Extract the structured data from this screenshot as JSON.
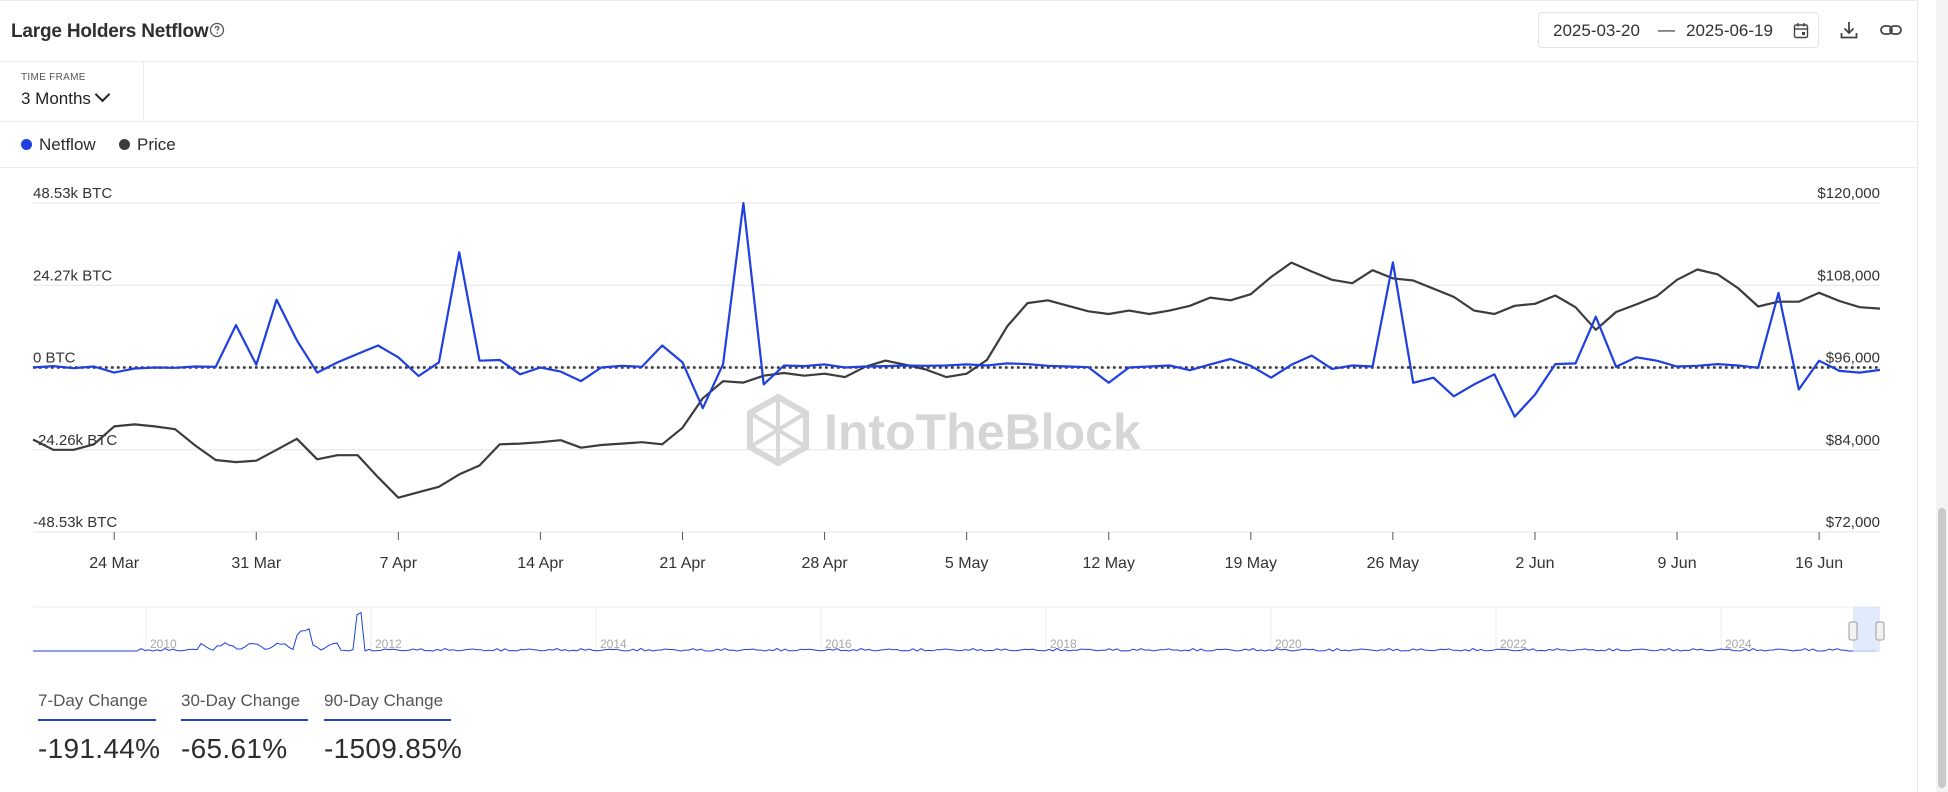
{
  "header": {
    "title": "Large Holders Netflow",
    "date_from": "2025-03-20",
    "date_separator": "—",
    "date_to": "2025-06-19"
  },
  "timeframe": {
    "label": "TIME FRAME",
    "value": "3 Months"
  },
  "legend": [
    {
      "label": "Netflow",
      "color": "#1f3fe0"
    },
    {
      "label": "Price",
      "color": "#3c3c3c"
    }
  ],
  "watermark": "IntoTheBlock",
  "stats": [
    {
      "label": "7-Day Change",
      "value": "-191.44%"
    },
    {
      "label": "30-Day Change",
      "value": "-65.61%"
    },
    {
      "label": "90-Day Change",
      "value": "-1509.85%"
    }
  ],
  "chart_data": {
    "type": "line",
    "title": "Large Holders Netflow",
    "left_axis": {
      "ticks": [
        "48.53k BTC",
        "24.27k BTC",
        "0 BTC",
        "-24.26k BTC",
        "-48.53k BTC"
      ],
      "range": [
        -48530,
        48530
      ],
      "unit": "BTC"
    },
    "right_axis": {
      "ticks": [
        "$120,000",
        "$108,000",
        "$96,000",
        "$84,000",
        "$72,000"
      ],
      "range": [
        72000,
        120000
      ],
      "unit": "USD"
    },
    "x_ticks": [
      "24 Mar",
      "31 Mar",
      "7 Apr",
      "14 Apr",
      "21 Apr",
      "28 Apr",
      "5 May",
      "12 May",
      "19 May",
      "26 May",
      "2 Jun",
      "9 Jun",
      "16 Jun"
    ],
    "x_range": [
      "2025-03-20",
      "2025-06-19"
    ],
    "grid": true,
    "zero_line": "dotted",
    "legend_position": "top-left",
    "series": [
      {
        "name": "Netflow",
        "axis": "left",
        "color": "#1f3fe0",
        "x": [
          "2025-03-20",
          "2025-03-21",
          "2025-03-22",
          "2025-03-23",
          "2025-03-24",
          "2025-03-25",
          "2025-03-26",
          "2025-03-27",
          "2025-03-28",
          "2025-03-29",
          "2025-03-30",
          "2025-03-31",
          "2025-04-01",
          "2025-04-02",
          "2025-04-03",
          "2025-04-04",
          "2025-04-05",
          "2025-04-06",
          "2025-04-07",
          "2025-04-08",
          "2025-04-09",
          "2025-04-10",
          "2025-04-11",
          "2025-04-12",
          "2025-04-13",
          "2025-04-14",
          "2025-04-15",
          "2025-04-16",
          "2025-04-17",
          "2025-04-18",
          "2025-04-19",
          "2025-04-20",
          "2025-04-21",
          "2025-04-22",
          "2025-04-23",
          "2025-04-24",
          "2025-04-25",
          "2025-04-26",
          "2025-04-27",
          "2025-04-28",
          "2025-04-29",
          "2025-04-30",
          "2025-05-01",
          "2025-05-02",
          "2025-05-03",
          "2025-05-04",
          "2025-05-05",
          "2025-05-06",
          "2025-05-07",
          "2025-05-08",
          "2025-05-09",
          "2025-05-10",
          "2025-05-11",
          "2025-05-12",
          "2025-05-13",
          "2025-05-14",
          "2025-05-15",
          "2025-05-16",
          "2025-05-17",
          "2025-05-18",
          "2025-05-19",
          "2025-05-20",
          "2025-05-21",
          "2025-05-22",
          "2025-05-23",
          "2025-05-24",
          "2025-05-25",
          "2025-05-26",
          "2025-05-27",
          "2025-05-28",
          "2025-05-29",
          "2025-05-30",
          "2025-05-31",
          "2025-06-01",
          "2025-06-02",
          "2025-06-03",
          "2025-06-04",
          "2025-06-05",
          "2025-06-06",
          "2025-06-07",
          "2025-06-08",
          "2025-06-09",
          "2025-06-10",
          "2025-06-11",
          "2025-06-12",
          "2025-06-13",
          "2025-06-14",
          "2025-06-15",
          "2025-06-16",
          "2025-06-17",
          "2025-06-18",
          "2025-06-19"
        ],
        "values": [
          0,
          400,
          -200,
          300,
          -1500,
          -300,
          0,
          -100,
          300,
          200,
          12500,
          800,
          20000,
          8000,
          -1500,
          1500,
          4000,
          6500,
          3000,
          -2500,
          1500,
          34000,
          2000,
          2200,
          -2000,
          0,
          -1200,
          -4000,
          0,
          500,
          200,
          6500,
          1500,
          -12000,
          1000,
          48500,
          -5000,
          600,
          400,
          900,
          0,
          300,
          400,
          600,
          500,
          600,
          900,
          600,
          1200,
          1000,
          500,
          300,
          100,
          -4500,
          0,
          300,
          600,
          -800,
          900,
          2500,
          500,
          -3000,
          800,
          3500,
          -400,
          600,
          300,
          31000,
          -4500,
          -3000,
          -8500,
          -5000,
          -2000,
          -14500,
          -8000,
          1000,
          1200,
          15000,
          200,
          3000,
          2000,
          300,
          500,
          1000,
          600,
          -100,
          22000,
          -6500,
          2000,
          -1000,
          -1500,
          -700
        ]
      },
      {
        "name": "Price",
        "axis": "right",
        "color": "#3c3c3c",
        "x": [
          "2025-03-20",
          "2025-03-21",
          "2025-03-22",
          "2025-03-23",
          "2025-03-24",
          "2025-03-25",
          "2025-03-26",
          "2025-03-27",
          "2025-03-28",
          "2025-03-29",
          "2025-03-30",
          "2025-03-31",
          "2025-04-01",
          "2025-04-02",
          "2025-04-03",
          "2025-04-04",
          "2025-04-05",
          "2025-04-06",
          "2025-04-07",
          "2025-04-08",
          "2025-04-09",
          "2025-04-10",
          "2025-04-11",
          "2025-04-12",
          "2025-04-13",
          "2025-04-14",
          "2025-04-15",
          "2025-04-16",
          "2025-04-17",
          "2025-04-18",
          "2025-04-19",
          "2025-04-20",
          "2025-04-21",
          "2025-04-22",
          "2025-04-23",
          "2025-04-24",
          "2025-04-25",
          "2025-04-26",
          "2025-04-27",
          "2025-04-28",
          "2025-04-29",
          "2025-04-30",
          "2025-05-01",
          "2025-05-02",
          "2025-05-03",
          "2025-05-04",
          "2025-05-05",
          "2025-05-06",
          "2025-05-07",
          "2025-05-08",
          "2025-05-09",
          "2025-05-10",
          "2025-05-11",
          "2025-05-12",
          "2025-05-13",
          "2025-05-14",
          "2025-05-15",
          "2025-05-16",
          "2025-05-17",
          "2025-05-18",
          "2025-05-19",
          "2025-05-20",
          "2025-05-21",
          "2025-05-22",
          "2025-05-23",
          "2025-05-24",
          "2025-05-25",
          "2025-05-26",
          "2025-05-27",
          "2025-05-28",
          "2025-05-29",
          "2025-05-30",
          "2025-05-31",
          "2025-06-01",
          "2025-06-02",
          "2025-06-03",
          "2025-06-04",
          "2025-06-05",
          "2025-06-06",
          "2025-06-07",
          "2025-06-08",
          "2025-06-09",
          "2025-06-10",
          "2025-06-11",
          "2025-06-12",
          "2025-06-13",
          "2025-06-14",
          "2025-06-15",
          "2025-06-16",
          "2025-06-17",
          "2025-06-18",
          "2025-06-19"
        ],
        "values": [
          85500,
          84000,
          84000,
          84800,
          87400,
          87700,
          87400,
          87000,
          84600,
          82500,
          82200,
          82400,
          84000,
          85600,
          82600,
          83200,
          83200,
          80000,
          77000,
          77800,
          78600,
          80400,
          81700,
          84800,
          84900,
          85100,
          85400,
          84300,
          84700,
          84900,
          85100,
          84800,
          87200,
          91500,
          94000,
          93800,
          94800,
          95200,
          94800,
          95100,
          94600,
          96100,
          97000,
          96400,
          95700,
          94600,
          95100,
          97100,
          102000,
          105400,
          105800,
          105000,
          104200,
          103800,
          104300,
          103800,
          104300,
          105000,
          106200,
          105800,
          106700,
          109200,
          111300,
          110000,
          108800,
          108300,
          110200,
          109000,
          108700,
          107500,
          106300,
          104300,
          103800,
          105000,
          105300,
          106500,
          104800,
          101500,
          104100,
          105200,
          106400,
          108800,
          110300,
          109600,
          107600,
          104900,
          105600,
          105600,
          106900,
          105700,
          104800,
          104600
        ]
      }
    ],
    "navigator_ticks": [
      "2010",
      "2012",
      "2014",
      "2016",
      "2018",
      "2020",
      "2022",
      "2024"
    ]
  }
}
